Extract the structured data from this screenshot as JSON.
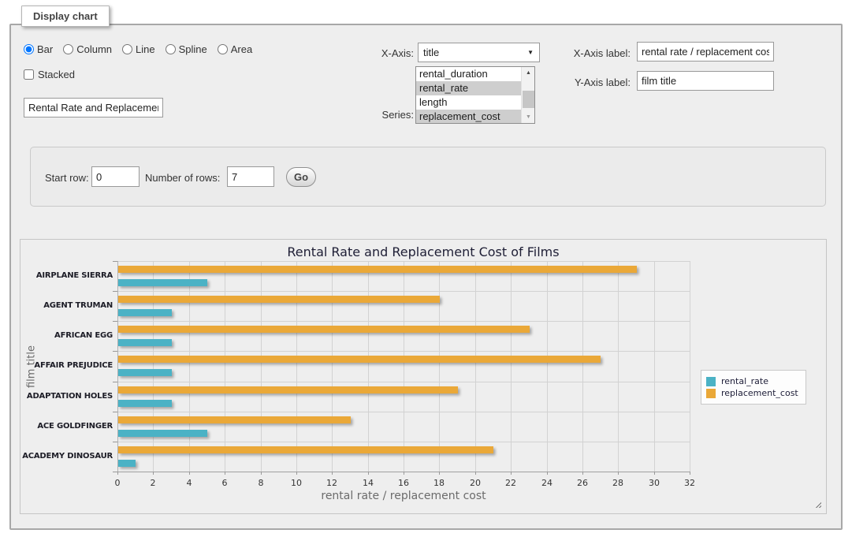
{
  "display_chart": {
    "panel_title": "Display chart",
    "chart_types": [
      {
        "label": "Bar",
        "selected": true
      },
      {
        "label": "Column",
        "selected": false
      },
      {
        "label": "Line",
        "selected": false
      },
      {
        "label": "Spline",
        "selected": false
      },
      {
        "label": "Area",
        "selected": false
      }
    ],
    "stacked": {
      "label": "Stacked",
      "checked": false
    },
    "title_input_value": "Rental Rate and Replacemer",
    "x_axis": {
      "label": "X-Axis:",
      "selected": "title"
    },
    "series_select": {
      "label": "Series:",
      "options": [
        {
          "label": "rental_duration",
          "selected": false
        },
        {
          "label": "rental_rate",
          "selected": true
        },
        {
          "label": "length",
          "selected": false
        },
        {
          "label": "replacement_cost",
          "selected": true
        }
      ]
    },
    "x_axis_label": {
      "label": "X-Axis label:",
      "value": "rental rate / replacement cost"
    },
    "y_axis_label": {
      "label": "Y-Axis label:",
      "value": "film title"
    }
  },
  "row_controls": {
    "start_row": {
      "label": "Start row:",
      "value": "0"
    },
    "number_of_rows": {
      "label": "Number of rows:",
      "value": "7"
    },
    "go_button": "Go"
  },
  "chart_data": {
    "type": "bar",
    "orientation": "horizontal",
    "title": "Rental Rate and Replacement Cost of Films",
    "categories": [
      "AIRPLANE SIERRA",
      "AGENT TRUMAN",
      "AFRICAN EGG",
      "AFFAIR PREJUDICE",
      "ADAPTATION HOLES",
      "ACE GOLDFINGER",
      "ACADEMY DINOSAUR"
    ],
    "series": [
      {
        "name": "rental_rate",
        "color": "#4bb2c5",
        "values": [
          4.99,
          2.99,
          2.99,
          2.99,
          2.99,
          4.99,
          0.99
        ]
      },
      {
        "name": "replacement_cost",
        "color": "#eaa838",
        "values": [
          28.99,
          17.99,
          22.99,
          26.99,
          18.99,
          12.99,
          20.99
        ]
      }
    ],
    "xlabel": "rental rate / replacement cost",
    "ylabel": "film title",
    "xlim": [
      0,
      32
    ],
    "x_tick_step": 2,
    "grid": true,
    "legend_position": "right"
  }
}
